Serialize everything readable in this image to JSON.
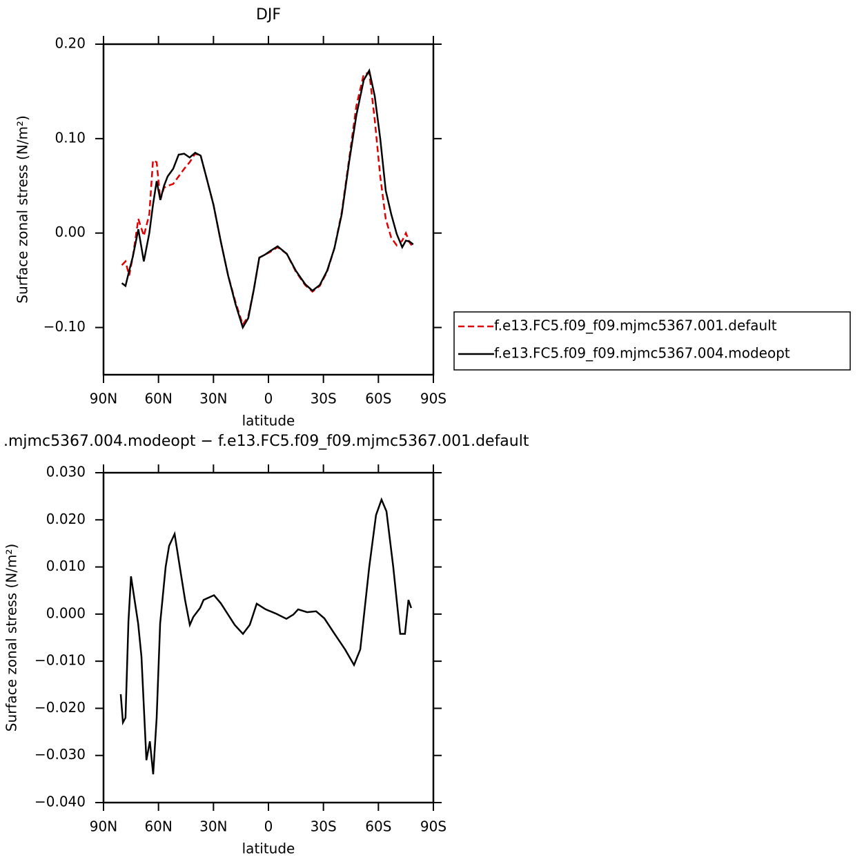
{
  "chart_data": [
    {
      "type": "line",
      "title": "DJF",
      "xlabel": "latitude",
      "ylabel": "Surface zonal stress (N/m²)",
      "xlim": [
        90,
        -90
      ],
      "xticks": [
        {
          "value": 90,
          "label": "90N"
        },
        {
          "value": 60,
          "label": "60N"
        },
        {
          "value": 30,
          "label": "30N"
        },
        0,
        {
          "value": -30,
          "label": "30S"
        },
        {
          "value": -60,
          "label": "60S"
        },
        {
          "value": -90,
          "label": "90S"
        }
      ],
      "ylim": [
        -0.15,
        0.2
      ],
      "yticks": [
        {
          "value": 0.2,
          "label": "0.20"
        },
        {
          "value": 0.1,
          "label": "0.10"
        },
        {
          "value": 0,
          "label": "0.00"
        },
        {
          "value": -0.1,
          "label": "−0.10"
        }
      ],
      "x": [
        80,
        78,
        76,
        74,
        71,
        68,
        65,
        63,
        61,
        59,
        57,
        55,
        52,
        49,
        46,
        43,
        40,
        37,
        34,
        30,
        26,
        22,
        18,
        14,
        11,
        8,
        5,
        2,
        -1,
        -5,
        -10,
        -15,
        -20,
        -24,
        -28,
        -32,
        -36,
        -40,
        -44,
        -48,
        -52,
        -55,
        -58,
        -61,
        -64,
        -67,
        -70,
        -73,
        -75,
        -77,
        -79
      ],
      "legend": "right",
      "series": [
        {
          "name": "f.e13.FC5.f09_f09.mjmc5367.001.default",
          "color": "#e00000",
          "dash": true,
          "values": [
            -0.034,
            -0.03,
            -0.045,
            -0.025,
            0.015,
            -0.003,
            0.02,
            0.077,
            0.075,
            0.035,
            0.048,
            0.05,
            0.052,
            0.06,
            0.068,
            0.075,
            0.084,
            0.082,
            0.06,
            0.03,
            -0.009,
            -0.045,
            -0.073,
            -0.097,
            -0.088,
            -0.06,
            -0.026,
            -0.023,
            -0.02,
            -0.015,
            -0.022,
            -0.041,
            -0.055,
            -0.062,
            -0.056,
            -0.041,
            -0.016,
            0.022,
            0.078,
            0.135,
            0.168,
            0.17,
            0.12,
            0.06,
            0.015,
            -0.005,
            -0.013,
            -0.008,
            0,
            -0.01,
            -0.015
          ]
        },
        {
          "name": "f.e13.FC5.f09_f09.mjmc5367.004.modeopt",
          "color": "#000000",
          "dash": false,
          "values": [
            -0.053,
            -0.056,
            -0.04,
            -0.025,
            0.004,
            -0.03,
            0,
            0.03,
            0.055,
            0.035,
            0.05,
            0.06,
            0.068,
            0.083,
            0.084,
            0.08,
            0.085,
            0.082,
            0.06,
            0.03,
            -0.009,
            -0.045,
            -0.075,
            -0.1,
            -0.09,
            -0.06,
            -0.026,
            -0.023,
            -0.019,
            -0.014,
            -0.022,
            -0.04,
            -0.054,
            -0.061,
            -0.055,
            -0.04,
            -0.016,
            0.02,
            0.075,
            0.125,
            0.162,
            0.172,
            0.145,
            0.1,
            0.045,
            0.02,
            -0.001,
            -0.015,
            -0.008,
            -0.009,
            -0.012
          ]
        }
      ]
    },
    {
      "type": "line",
      "title": ".mjmc5367.004.modeopt − f.e13.FC5.f09_f09.mjmc5367.001.default",
      "xlabel": "latitude",
      "ylabel": "Surface zonal stress (N/m²)",
      "xlim": [
        90,
        -90
      ],
      "xticks": [
        {
          "value": 90,
          "label": "90N"
        },
        {
          "value": 60,
          "label": "60N"
        },
        {
          "value": 30,
          "label": "30N"
        },
        0,
        {
          "value": -30,
          "label": "30S"
        },
        {
          "value": -60,
          "label": "60S"
        },
        {
          "value": -90,
          "label": "90S"
        }
      ],
      "ylim": [
        -0.04,
        0.03
      ],
      "yticks": [
        {
          "value": 0.03,
          "label": "0.030"
        },
        {
          "value": 0.02,
          "label": "0.020"
        },
        {
          "value": 0.01,
          "label": "0.010"
        },
        {
          "value": 0,
          "label": "0.000"
        },
        {
          "value": -0.01,
          "label": "−0.010"
        },
        {
          "value": -0.02,
          "label": "−0.020"
        },
        {
          "value": -0.03,
          "label": "−0.030"
        },
        {
          "value": -0.04,
          "label": "−0.040"
        }
      ],
      "x": [
        80.6,
        79.4,
        78,
        76.4,
        75,
        71.1,
        69.3,
        66.6,
        64.7,
        62.9,
        61,
        59.1,
        56.1,
        54.2,
        51.2,
        47.8,
        45.5,
        42.9,
        41,
        37.3,
        35.4,
        29.7,
        26,
        18.4,
        13.9,
        10.2,
        6.4,
        1.5,
        -4.1,
        -9.8,
        -13.6,
        -16.2,
        -21.1,
        -26,
        -30.5,
        -36.1,
        -41.8,
        -46.7,
        -50.1,
        -55,
        -58.7,
        -61.7,
        -64.4,
        -68.1,
        -71.9,
        -74.5,
        -76.4,
        -77.9
      ],
      "color": "#000000",
      "values": [
        -0.017,
        -0.023,
        -0.022,
        -0.0016,
        0.008,
        -0.002,
        -0.009,
        -0.031,
        -0.027,
        -0.034,
        -0.022,
        -0.002,
        0.01,
        0.0145,
        0.017,
        0.0086,
        0.003,
        -0.0023,
        -0.0006,
        0.0013,
        0.003,
        0.004,
        0.0023,
        -0.0023,
        -0.0042,
        -0.0023,
        0.0022,
        0.001,
        0.0001,
        -0.001,
        -0.0001,
        0.001,
        0.0004,
        0.0006,
        -0.0009,
        -0.0042,
        -0.0075,
        -0.0108,
        -0.0075,
        0.01,
        0.021,
        0.0243,
        0.0218,
        0.01,
        -0.0042,
        -0.0042,
        0.003,
        0.0013
      ]
    }
  ]
}
